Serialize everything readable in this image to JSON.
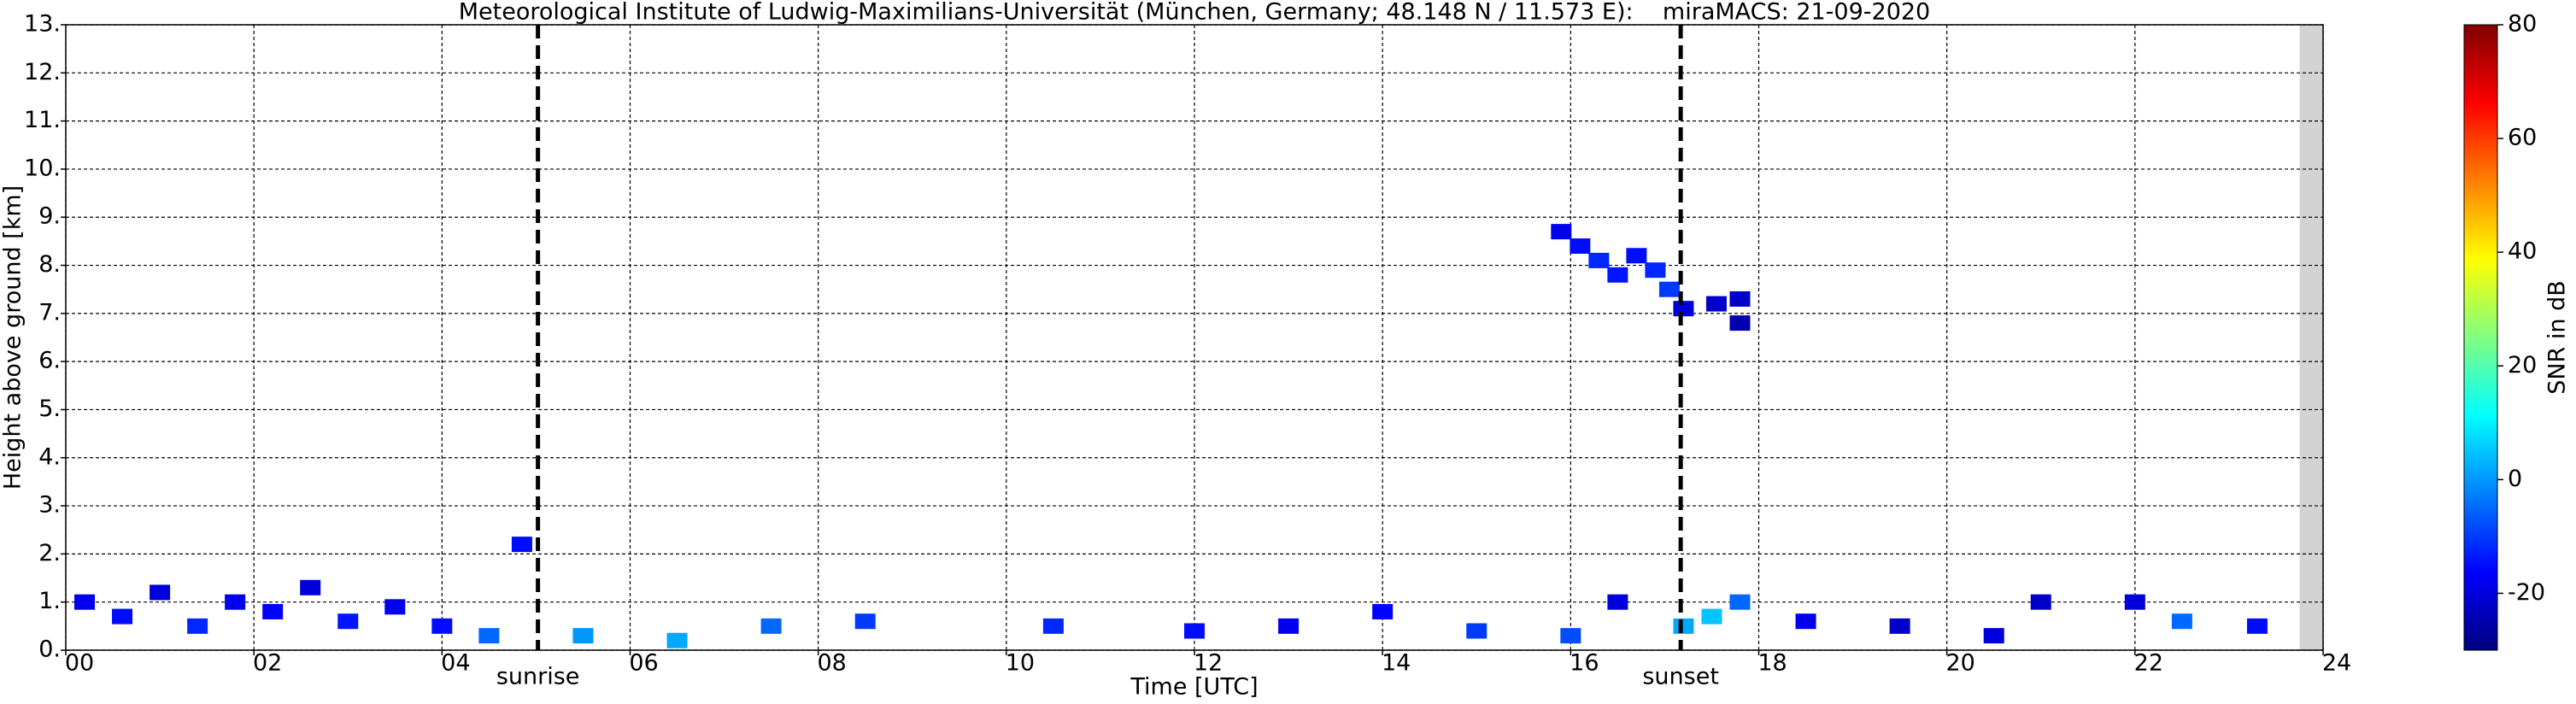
{
  "chart_data": {
    "type": "heatmap",
    "title": "Meteorological Institute of Ludwig-Maximilians-Universität (München, Germany; 48.148 N / 11.573 E):    miraMACS: 21-09-2020",
    "xlabel": "Time [UTC]",
    "ylabel": "Height above ground [km]",
    "colorbar_label": "SNR in dB",
    "x": [
      15.9,
      16.1,
      16.3,
      16.5,
      16.7,
      16.9,
      17.05,
      17.2,
      17.55,
      17.8,
      17.8,
      4.85,
      0.2,
      0.6,
      1.0,
      1.4,
      1.8,
      2.2,
      2.6,
      3.0,
      3.5,
      4.0,
      4.5,
      5.5,
      6.5,
      7.5,
      8.5,
      10.5,
      12.0,
      13.0,
      14.0,
      15.0,
      16.0,
      16.5,
      17.2,
      17.5,
      17.8,
      18.5,
      19.5,
      20.5,
      21.0,
      22.0,
      22.5,
      23.3
    ],
    "y": [
      8.7,
      8.4,
      8.1,
      7.8,
      8.2,
      7.9,
      7.5,
      7.1,
      7.2,
      6.8,
      7.3,
      2.2,
      1.0,
      0.7,
      1.2,
      0.5,
      1.0,
      0.8,
      1.3,
      0.6,
      0.9,
      0.5,
      0.3,
      0.3,
      0.2,
      0.5,
      0.6,
      0.5,
      0.4,
      0.5,
      0.8,
      0.4,
      0.3,
      1.0,
      0.5,
      0.7,
      1.0,
      0.6,
      0.5,
      0.3,
      1.0,
      1.0,
      0.6,
      0.5
    ],
    "values": [
      -18,
      -15,
      -12,
      -14,
      -15,
      -12,
      -10,
      -20,
      -22,
      -25,
      -22,
      -15,
      -18,
      -15,
      -20,
      -12,
      -18,
      -16,
      -20,
      -14,
      -18,
      -15,
      -5,
      0,
      2,
      -5,
      -10,
      -12,
      -15,
      -18,
      -16,
      -10,
      -8,
      -20,
      2,
      5,
      -5,
      -18,
      -22,
      -20,
      -22,
      -20,
      -5,
      -15
    ],
    "clim": [
      -30,
      80
    ],
    "cticks": [
      -20,
      0,
      20,
      40,
      60,
      80
    ],
    "xlim": [
      0,
      24
    ],
    "xticks": [
      {
        "value": 0,
        "label": "00"
      },
      {
        "value": 2,
        "label": "02"
      },
      {
        "value": 4,
        "label": "04"
      },
      {
        "value": 6,
        "label": "06"
      },
      {
        "value": 8,
        "label": "08"
      },
      {
        "value": 10,
        "label": "10"
      },
      {
        "value": 12,
        "label": "12"
      },
      {
        "value": 14,
        "label": "14"
      },
      {
        "value": 16,
        "label": "16"
      },
      {
        "value": 18,
        "label": "18"
      },
      {
        "value": 20,
        "label": "20"
      },
      {
        "value": 22,
        "label": "22"
      },
      {
        "value": 24,
        "label": "24"
      }
    ],
    "ylim": [
      0,
      13
    ],
    "yticks": [
      {
        "value": 0,
        "label": "0."
      },
      {
        "value": 1,
        "label": "1."
      },
      {
        "value": 2,
        "label": "2."
      },
      {
        "value": 3,
        "label": "3."
      },
      {
        "value": 4,
        "label": "4."
      },
      {
        "value": 5,
        "label": "5."
      },
      {
        "value": 6,
        "label": "6."
      },
      {
        "value": 7,
        "label": "7."
      },
      {
        "value": 8,
        "label": "8."
      },
      {
        "value": 9,
        "label": "9."
      },
      {
        "value": 10,
        "label": "10."
      },
      {
        "value": 11,
        "label": "11."
      },
      {
        "value": 12,
        "label": "12."
      },
      {
        "value": 13,
        "label": "13."
      }
    ],
    "grid": true,
    "no_data": [
      23.75,
      24
    ],
    "annotations": [
      {
        "text": "sunrise",
        "x": 5.02
      },
      {
        "text": "sunset",
        "x": 17.17
      }
    ]
  }
}
